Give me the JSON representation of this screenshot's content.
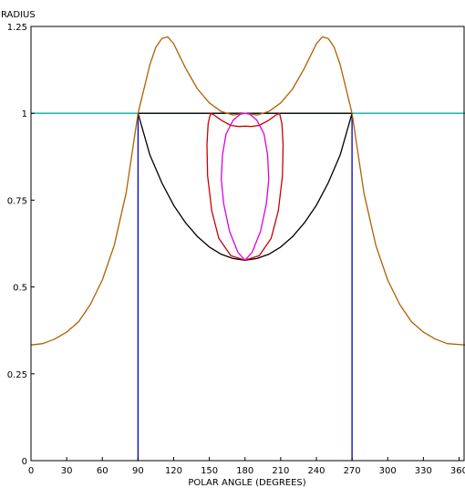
{
  "chart_data": {
    "type": "line",
    "title": "",
    "xlabel": "POLAR ANGLE (DEGREES)",
    "ylabel": "RADIUS",
    "xlim": [
      0,
      365
    ],
    "ylim": [
      0,
      1.25
    ],
    "xticks": [
      "0",
      "30",
      "60",
      "90",
      "120",
      "150",
      "180",
      "210",
      "240",
      "270",
      "300",
      "330",
      "360"
    ],
    "yticks": [
      "0",
      "0.25",
      "0.5",
      "0.75",
      "1",
      "1.25"
    ],
    "grid": false,
    "legend": "none",
    "series": [
      {
        "color": "#00b0b0",
        "points": [
          [
            0,
            1
          ],
          [
            365,
            1
          ]
        ]
      },
      {
        "color": "#0000c0",
        "points": [
          [
            90,
            0
          ],
          [
            90,
            1
          ]
        ]
      },
      {
        "color": "#0000c0",
        "points": [
          [
            270,
            0
          ],
          [
            270,
            1
          ]
        ]
      },
      {
        "color": "#000000",
        "points": [
          [
            90,
            1
          ],
          [
            270,
            1
          ]
        ]
      },
      {
        "color": "#000000",
        "points": [
          [
            90,
            1
          ],
          [
            100,
            0.88
          ],
          [
            110,
            0.8
          ],
          [
            120,
            0.735
          ],
          [
            130,
            0.685
          ],
          [
            140,
            0.645
          ],
          [
            150,
            0.615
          ],
          [
            160,
            0.594
          ],
          [
            170,
            0.582
          ],
          [
            180,
            0.577
          ],
          [
            190,
            0.582
          ],
          [
            200,
            0.594
          ],
          [
            210,
            0.615
          ],
          [
            220,
            0.645
          ],
          [
            230,
            0.685
          ],
          [
            240,
            0.735
          ],
          [
            250,
            0.8
          ],
          [
            260,
            0.88
          ],
          [
            270,
            1
          ]
        ]
      },
      {
        "color": "#b06000",
        "points": [
          [
            0,
            0.333
          ],
          [
            10,
            0.337
          ],
          [
            20,
            0.35
          ],
          [
            30,
            0.37
          ],
          [
            40,
            0.4
          ],
          [
            50,
            0.45
          ],
          [
            60,
            0.52
          ],
          [
            70,
            0.62
          ],
          [
            80,
            0.77
          ],
          [
            90,
            1
          ],
          [
            100,
            1.14
          ],
          [
            105,
            1.19
          ],
          [
            110,
            1.215
          ],
          [
            115,
            1.22
          ],
          [
            120,
            1.2
          ],
          [
            130,
            1.13
          ],
          [
            140,
            1.07
          ],
          [
            150,
            1.03
          ],
          [
            160,
            1.005
          ],
          [
            170,
            0.995
          ],
          [
            180,
            1
          ],
          [
            190,
            0.995
          ],
          [
            200,
            1.005
          ],
          [
            210,
            1.03
          ],
          [
            220,
            1.07
          ],
          [
            230,
            1.13
          ],
          [
            240,
            1.2
          ],
          [
            245,
            1.22
          ],
          [
            250,
            1.215
          ],
          [
            255,
            1.19
          ],
          [
            260,
            1.14
          ],
          [
            270,
            1
          ],
          [
            280,
            0.77
          ],
          [
            290,
            0.62
          ],
          [
            300,
            0.52
          ],
          [
            310,
            0.45
          ],
          [
            320,
            0.4
          ],
          [
            330,
            0.37
          ],
          [
            340,
            0.35
          ],
          [
            350,
            0.337
          ],
          [
            365,
            0.333
          ]
        ]
      },
      {
        "color": "#cc0000",
        "points": [
          [
            180,
            0.577
          ],
          [
            168,
            0.59
          ],
          [
            158,
            0.64
          ],
          [
            152,
            0.72
          ],
          [
            148.5,
            0.82
          ],
          [
            148,
            0.91
          ],
          [
            149,
            0.97
          ],
          [
            151,
            1.0
          ],
          [
            154,
            0.995
          ],
          [
            160,
            0.98
          ],
          [
            168,
            0.965
          ],
          [
            175,
            0.962
          ],
          [
            180,
            0.963
          ],
          [
            185,
            0.962
          ],
          [
            192,
            0.965
          ],
          [
            200,
            0.98
          ],
          [
            206,
            0.995
          ],
          [
            209,
            1.0
          ],
          [
            211,
            0.97
          ],
          [
            212,
            0.91
          ],
          [
            211.5,
            0.82
          ],
          [
            208,
            0.72
          ],
          [
            202,
            0.64
          ],
          [
            192,
            0.59
          ],
          [
            180,
            0.577
          ]
        ]
      },
      {
        "color": "#dd00dd",
        "points": [
          [
            180,
            0.577
          ],
          [
            174,
            0.6
          ],
          [
            167,
            0.66
          ],
          [
            162,
            0.74
          ],
          [
            160,
            0.81
          ],
          [
            161,
            0.88
          ],
          [
            164,
            0.94
          ],
          [
            170,
            0.98
          ],
          [
            176,
            0.997
          ],
          [
            180,
            1.0
          ],
          [
            184,
            0.997
          ],
          [
            190,
            0.98
          ],
          [
            196,
            0.94
          ],
          [
            199,
            0.88
          ],
          [
            200,
            0.81
          ],
          [
            198,
            0.74
          ],
          [
            193,
            0.66
          ],
          [
            186,
            0.6
          ],
          [
            180,
            0.577
          ]
        ]
      }
    ]
  }
}
